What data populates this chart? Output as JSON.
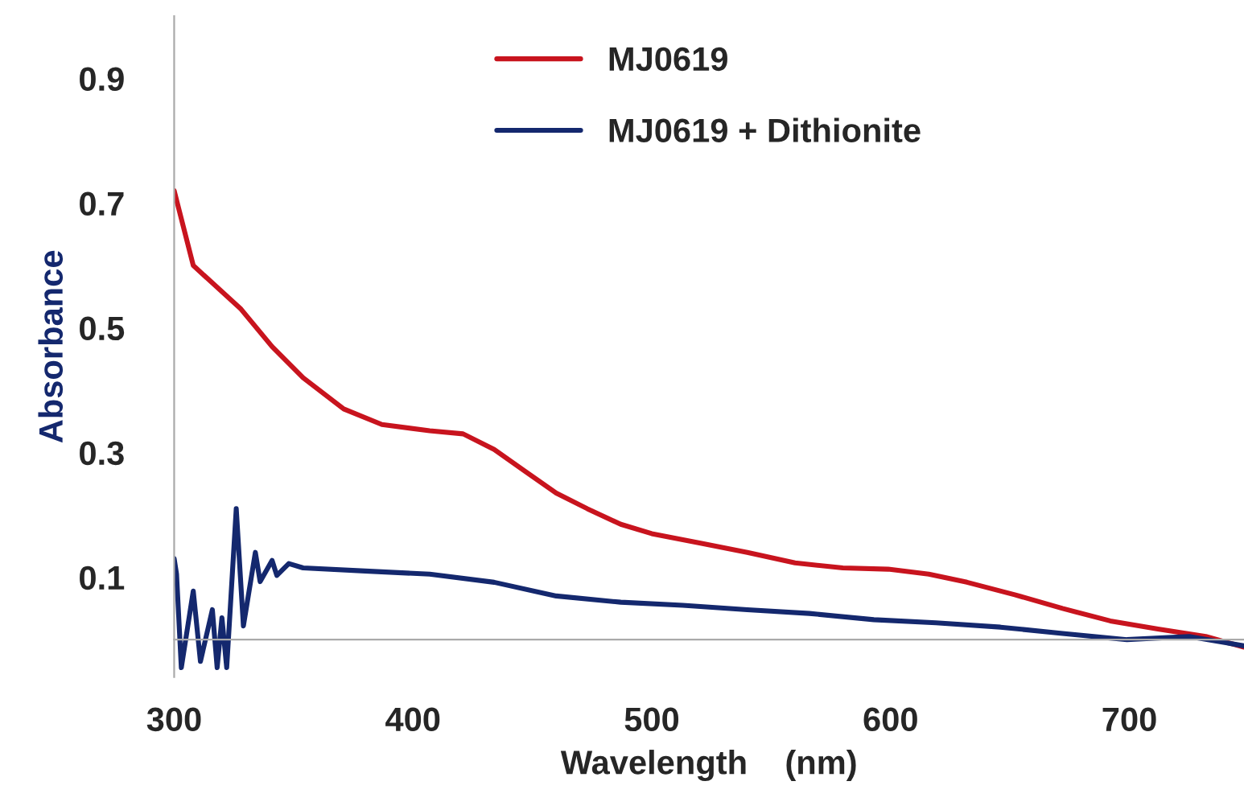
{
  "chart_data": {
    "type": "line",
    "xlabel": "Wavelength    (nm)",
    "ylabel": "Absorbance",
    "xlim": [
      300,
      748
    ],
    "ylim": [
      -0.06,
      1.0
    ],
    "xticks": [
      300,
      400,
      500,
      600,
      700
    ],
    "yticks": [
      0.1,
      0.3,
      0.5,
      0.7,
      0.9
    ],
    "grid": false,
    "legend": "top",
    "marker": "none",
    "line_style": "solid",
    "series": [
      {
        "name": "MJ0619",
        "color": "#c8141e",
        "x": [
          300,
          308,
          328,
          341,
          354,
          371,
          387,
          407,
          421,
          434,
          447,
          460,
          473,
          487,
          500,
          520,
          540,
          560,
          580,
          599,
          616,
          632,
          652,
          672,
          692,
          712,
          732,
          748
        ],
        "values": [
          0.72,
          0.6,
          0.53,
          0.47,
          0.42,
          0.37,
          0.345,
          0.335,
          0.33,
          0.305,
          0.27,
          0.235,
          0.21,
          0.185,
          0.17,
          0.155,
          0.14,
          0.123,
          0.115,
          0.113,
          0.105,
          0.092,
          0.072,
          0.05,
          0.03,
          0.017,
          0.005,
          -0.012
        ]
      },
      {
        "name": "MJ0619 + Dithionite",
        "color": "#14286e",
        "x": [
          300,
          301,
          303,
          308,
          311,
          316,
          318,
          320,
          322,
          326,
          329,
          334,
          336,
          341,
          343,
          348,
          354,
          380,
          407,
          434,
          460,
          487,
          513,
          540,
          566,
          593,
          619,
          646,
          672,
          699,
          725,
          748
        ],
        "values": [
          0.13,
          0.105,
          -0.045,
          0.078,
          -0.035,
          0.048,
          -0.045,
          0.035,
          -0.045,
          0.21,
          0.022,
          0.14,
          0.093,
          0.127,
          0.103,
          0.122,
          0.115,
          0.11,
          0.105,
          0.092,
          0.07,
          0.06,
          0.055,
          0.048,
          0.042,
          0.032,
          0.027,
          0.02,
          0.01,
          0.0,
          0.005,
          -0.01
        ]
      }
    ]
  }
}
